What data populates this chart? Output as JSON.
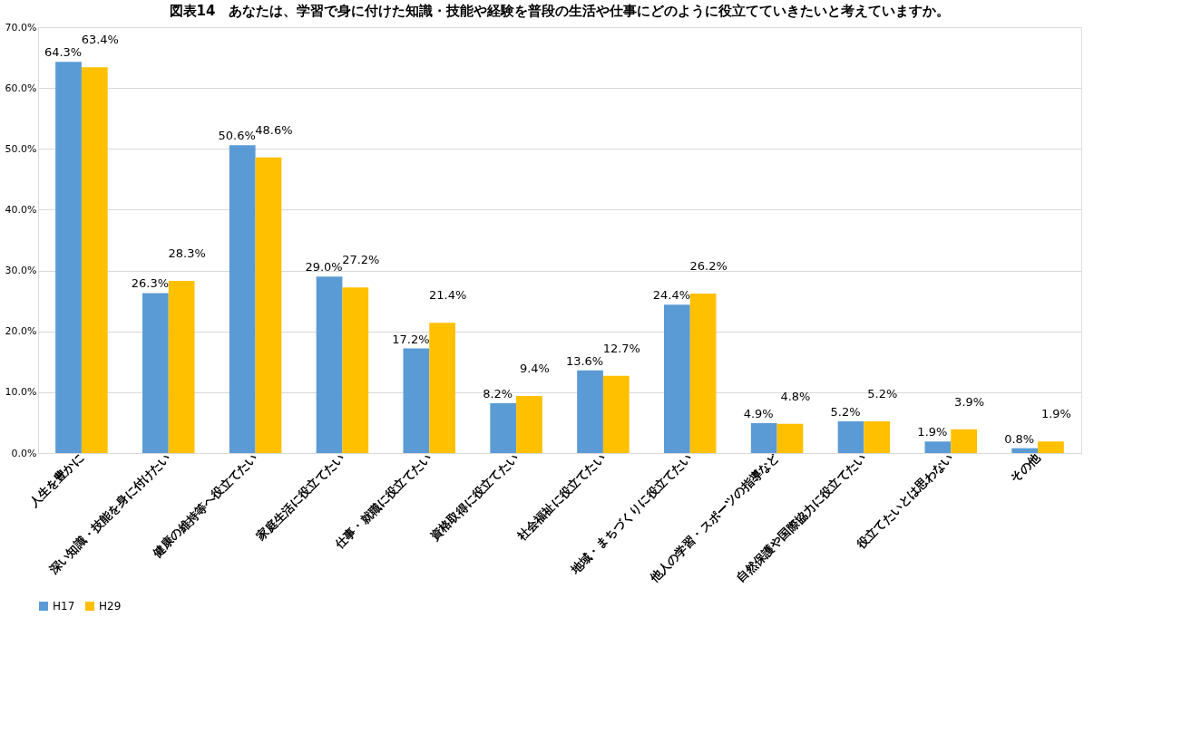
{
  "chart_data": {
    "type": "bar",
    "title": "図表14　あなたは、学習で身に付けた知識・技能や経験を普段の生活や仕事にどのように役立てていきたいと考えていますか。",
    "categories": [
      "人生を豊かに",
      "深い知識・技能を身に付けたい",
      "健康の維持等へ役立てたい",
      "家庭生活に役立てたい",
      "仕事・就職に役立てたい",
      "資格取得に役立てたい",
      "社会福祉に役立てたい",
      "地域・まちづくりに役立てたい",
      "他人の学習・スポーツの指導など",
      "自然保護や国際協力に役立てたい",
      "役立てたいとは思わない",
      "その他"
    ],
    "series": [
      {
        "name": "H17",
        "color": "#5b9bd5",
        "values": [
          64.3,
          26.3,
          50.6,
          29.0,
          17.2,
          8.2,
          13.6,
          24.4,
          4.9,
          5.2,
          1.9,
          0.8
        ],
        "value_labels": [
          "64.3%",
          "26.3%",
          "50.6%",
          "29.0%",
          "17.2%",
          "8.2%",
          "13.6%",
          "24.4%",
          "4.9%",
          "5.2%",
          "1.9%",
          "0.8%"
        ]
      },
      {
        "name": "H29",
        "color": "#ffc000",
        "values": [
          63.4,
          28.3,
          48.6,
          27.2,
          21.4,
          9.4,
          12.7,
          26.2,
          4.8,
          5.2,
          3.9,
          1.9
        ],
        "value_labels": [
          "63.4%",
          "28.3%",
          "48.6%",
          "27.2%",
          "21.4%",
          "9.4%",
          "12.7%",
          "26.2%",
          "4.8%",
          "5.2%",
          "3.9%",
          "1.9%"
        ]
      }
    ],
    "ylim": [
      0,
      70
    ],
    "yticks": [
      {
        "value": 0,
        "label": "0.0%"
      },
      {
        "value": 10,
        "label": "10.0%"
      },
      {
        "value": 20,
        "label": "20.0%"
      },
      {
        "value": 30,
        "label": "30.0%"
      },
      {
        "value": 40,
        "label": "40.0%"
      },
      {
        "value": 50,
        "label": "50.0%"
      },
      {
        "value": 60,
        "label": "60.0%"
      },
      {
        "value": 70,
        "label": "70.0%"
      }
    ],
    "grid": "y",
    "legend": "bottom"
  }
}
